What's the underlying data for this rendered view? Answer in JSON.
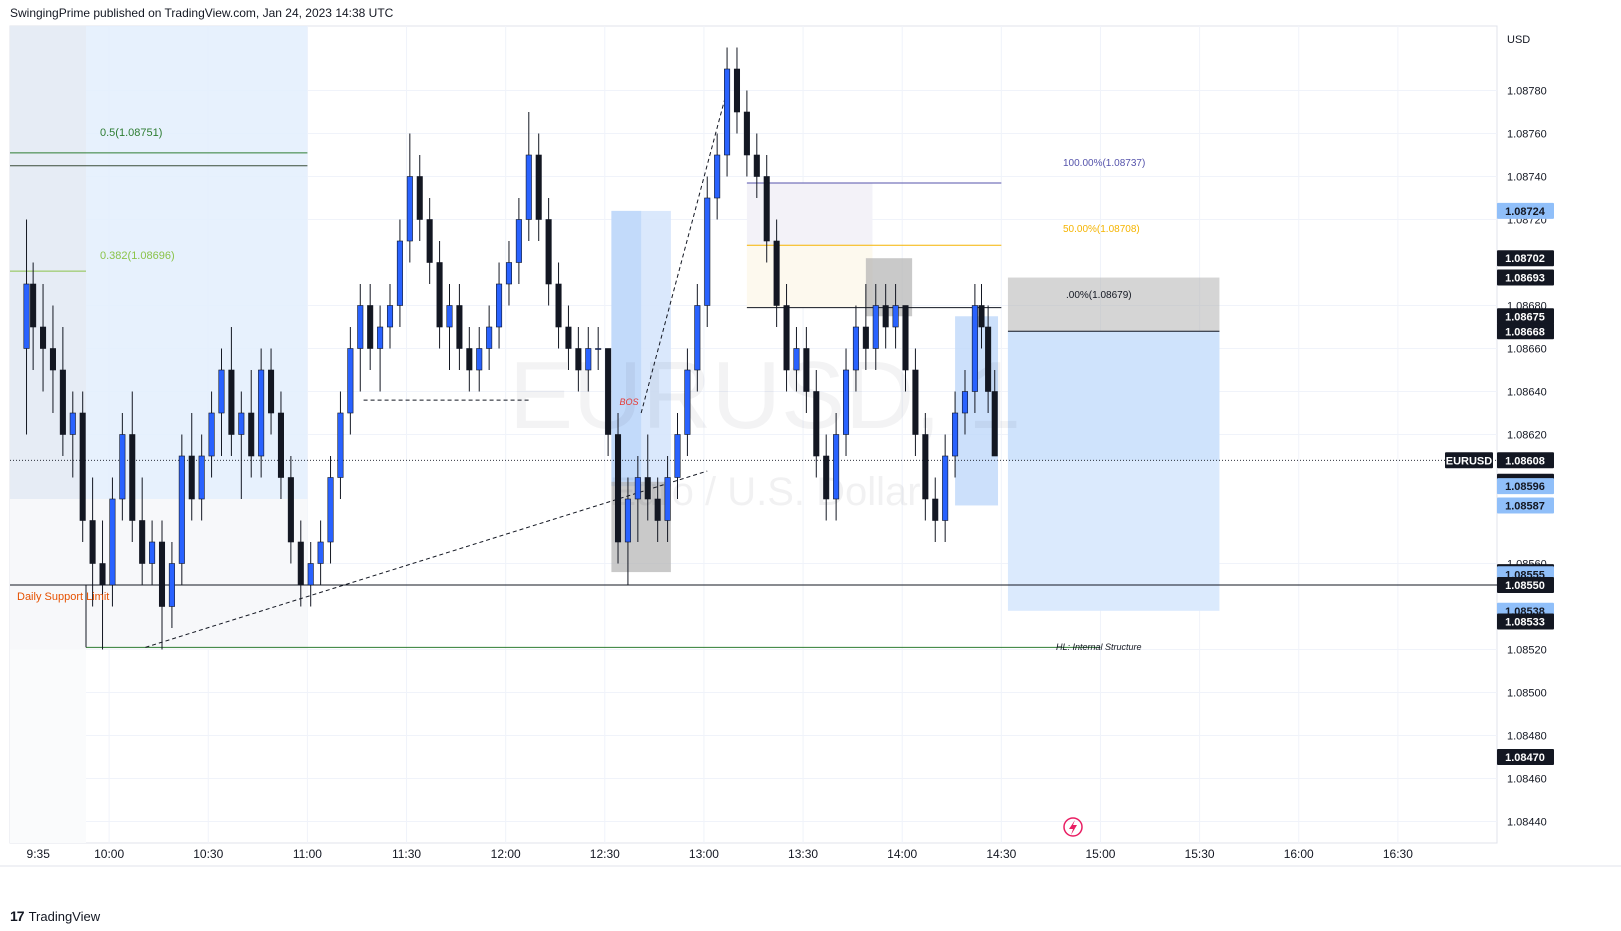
{
  "header": {
    "publisher_line": "SwingingPrime published on TradingView.com, Jan 24, 2023 14:38 UTC"
  },
  "footer": {
    "brand": "TradingView",
    "brand_icon": "tradingview-logo-icon"
  },
  "colors": {
    "candle_up": "#2962ff",
    "candle_down": "#131722",
    "blue_zone": "#e3eefd",
    "gray_box": "#b2b2b2",
    "fib_half": "#2e7d32",
    "fib_0382": "#8bc34a",
    "fib_100": "#5553ab",
    "fib_50": "#f5b400",
    "support_label": "#e65100",
    "bos_label": "#e53935",
    "hl_line": "#2e7d32",
    "price_tag_dark": "#131722",
    "price_tag_blue": "#90bff9"
  },
  "chart_data": {
    "type": "candlestick",
    "symbol": "EURUSD",
    "watermark": {
      "symbol": "EURUSD, 1",
      "name": "Euro / U.S. Dollar"
    },
    "currency": "USD",
    "ylim": [
      1.0843,
      1.0881
    ],
    "y_ticks": [
      1.0878,
      1.0876,
      1.0874,
      1.0872,
      1.0868,
      1.0866,
      1.0864,
      1.0862,
      1.0856,
      1.0852,
      1.085,
      1.0848,
      1.0846,
      1.0844
    ],
    "x_ticks": [
      "9:35",
      "10:00",
      "10:30",
      "11:00",
      "11:30",
      "12:00",
      "12:30",
      "13:00",
      "13:30",
      "14:00",
      "14:30",
      "15:00",
      "15:30",
      "16:00",
      "16:30"
    ],
    "x_range_minutes": [
      570,
      1020
    ],
    "candles": [
      {
        "t": 575,
        "o": 1.0866,
        "h": 1.0872,
        "l": 1.0862,
        "c": 1.0869
      },
      {
        "t": 577,
        "o": 1.0869,
        "h": 1.087,
        "l": 1.0865,
        "c": 1.0867
      },
      {
        "t": 580,
        "o": 1.0867,
        "h": 1.0869,
        "l": 1.0864,
        "c": 1.0866
      },
      {
        "t": 583,
        "o": 1.0866,
        "h": 1.0868,
        "l": 1.0863,
        "c": 1.0865
      },
      {
        "t": 586,
        "o": 1.0865,
        "h": 1.0867,
        "l": 1.0861,
        "c": 1.0862
      },
      {
        "t": 589,
        "o": 1.0862,
        "h": 1.0864,
        "l": 1.086,
        "c": 1.0863
      },
      {
        "t": 592,
        "o": 1.0863,
        "h": 1.0864,
        "l": 1.0857,
        "c": 1.0858
      },
      {
        "t": 595,
        "o": 1.0858,
        "h": 1.086,
        "l": 1.0854,
        "c": 1.0856
      },
      {
        "t": 598,
        "o": 1.0856,
        "h": 1.0858,
        "l": 1.0852,
        "c": 1.0855
      },
      {
        "t": 601,
        "o": 1.0855,
        "h": 1.086,
        "l": 1.0854,
        "c": 1.0859
      },
      {
        "t": 604,
        "o": 1.0859,
        "h": 1.0863,
        "l": 1.0858,
        "c": 1.0862
      },
      {
        "t": 607,
        "o": 1.0862,
        "h": 1.0864,
        "l": 1.0857,
        "c": 1.0858
      },
      {
        "t": 610,
        "o": 1.0858,
        "h": 1.086,
        "l": 1.0855,
        "c": 1.0856
      },
      {
        "t": 613,
        "o": 1.0856,
        "h": 1.0858,
        "l": 1.0855,
        "c": 1.0857
      },
      {
        "t": 616,
        "o": 1.0857,
        "h": 1.0858,
        "l": 1.0852,
        "c": 1.0854
      },
      {
        "t": 619,
        "o": 1.0854,
        "h": 1.0857,
        "l": 1.0853,
        "c": 1.0856
      },
      {
        "t": 622,
        "o": 1.0856,
        "h": 1.0862,
        "l": 1.0855,
        "c": 1.0861
      },
      {
        "t": 625,
        "o": 1.0861,
        "h": 1.0863,
        "l": 1.0858,
        "c": 1.0859
      },
      {
        "t": 628,
        "o": 1.0859,
        "h": 1.0862,
        "l": 1.0858,
        "c": 1.0861
      },
      {
        "t": 631,
        "o": 1.0861,
        "h": 1.0864,
        "l": 1.086,
        "c": 1.0863
      },
      {
        "t": 634,
        "o": 1.0863,
        "h": 1.0866,
        "l": 1.0861,
        "c": 1.0865
      },
      {
        "t": 637,
        "o": 1.0865,
        "h": 1.0867,
        "l": 1.0861,
        "c": 1.0862
      },
      {
        "t": 640,
        "o": 1.0862,
        "h": 1.0864,
        "l": 1.0859,
        "c": 1.0863
      },
      {
        "t": 643,
        "o": 1.0863,
        "h": 1.0865,
        "l": 1.086,
        "c": 1.0861
      },
      {
        "t": 646,
        "o": 1.0861,
        "h": 1.0866,
        "l": 1.086,
        "c": 1.0865
      },
      {
        "t": 649,
        "o": 1.0865,
        "h": 1.0866,
        "l": 1.0862,
        "c": 1.0863
      },
      {
        "t": 652,
        "o": 1.0863,
        "h": 1.0864,
        "l": 1.0859,
        "c": 1.086
      },
      {
        "t": 655,
        "o": 1.086,
        "h": 1.0861,
        "l": 1.0856,
        "c": 1.0857
      },
      {
        "t": 658,
        "o": 1.0857,
        "h": 1.0858,
        "l": 1.0854,
        "c": 1.0855
      },
      {
        "t": 661,
        "o": 1.0855,
        "h": 1.0857,
        "l": 1.0854,
        "c": 1.0856
      },
      {
        "t": 664,
        "o": 1.0856,
        "h": 1.0858,
        "l": 1.0855,
        "c": 1.0857
      },
      {
        "t": 667,
        "o": 1.0857,
        "h": 1.0861,
        "l": 1.0856,
        "c": 1.086
      },
      {
        "t": 670,
        "o": 1.086,
        "h": 1.0864,
        "l": 1.0859,
        "c": 1.0863
      },
      {
        "t": 673,
        "o": 1.0863,
        "h": 1.0867,
        "l": 1.0862,
        "c": 1.0866
      },
      {
        "t": 676,
        "o": 1.0866,
        "h": 1.0869,
        "l": 1.0864,
        "c": 1.0868
      },
      {
        "t": 679,
        "o": 1.0868,
        "h": 1.0869,
        "l": 1.0865,
        "c": 1.0866
      },
      {
        "t": 682,
        "o": 1.0866,
        "h": 1.0868,
        "l": 1.0864,
        "c": 1.0867
      },
      {
        "t": 685,
        "o": 1.0867,
        "h": 1.0869,
        "l": 1.0866,
        "c": 1.0868
      },
      {
        "t": 688,
        "o": 1.0868,
        "h": 1.0872,
        "l": 1.0867,
        "c": 1.0871
      },
      {
        "t": 691,
        "o": 1.0871,
        "h": 1.0876,
        "l": 1.087,
        "c": 1.0874
      },
      {
        "t": 694,
        "o": 1.0874,
        "h": 1.0875,
        "l": 1.0871,
        "c": 1.0872
      },
      {
        "t": 697,
        "o": 1.0872,
        "h": 1.0873,
        "l": 1.0869,
        "c": 1.087
      },
      {
        "t": 700,
        "o": 1.087,
        "h": 1.0871,
        "l": 1.0866,
        "c": 1.0867
      },
      {
        "t": 703,
        "o": 1.0867,
        "h": 1.0869,
        "l": 1.0865,
        "c": 1.0868
      },
      {
        "t": 706,
        "o": 1.0868,
        "h": 1.0869,
        "l": 1.0865,
        "c": 1.0866
      },
      {
        "t": 709,
        "o": 1.0866,
        "h": 1.0867,
        "l": 1.0864,
        "c": 1.0865
      },
      {
        "t": 712,
        "o": 1.0865,
        "h": 1.0867,
        "l": 1.0864,
        "c": 1.0866
      },
      {
        "t": 715,
        "o": 1.0866,
        "h": 1.0868,
        "l": 1.0865,
        "c": 1.0867
      },
      {
        "t": 718,
        "o": 1.0867,
        "h": 1.087,
        "l": 1.0866,
        "c": 1.0869
      },
      {
        "t": 721,
        "o": 1.0869,
        "h": 1.0871,
        "l": 1.0868,
        "c": 1.087
      },
      {
        "t": 724,
        "o": 1.087,
        "h": 1.0873,
        "l": 1.0869,
        "c": 1.0872
      },
      {
        "t": 727,
        "o": 1.0872,
        "h": 1.0877,
        "l": 1.0871,
        "c": 1.0875
      },
      {
        "t": 730,
        "o": 1.0875,
        "h": 1.0876,
        "l": 1.0871,
        "c": 1.0872
      },
      {
        "t": 733,
        "o": 1.0872,
        "h": 1.0873,
        "l": 1.0868,
        "c": 1.0869
      },
      {
        "t": 736,
        "o": 1.0869,
        "h": 1.087,
        "l": 1.0866,
        "c": 1.0867
      },
      {
        "t": 739,
        "o": 1.0867,
        "h": 1.0868,
        "l": 1.0865,
        "c": 1.0866
      },
      {
        "t": 742,
        "o": 1.0866,
        "h": 1.0867,
        "l": 1.0864,
        "c": 1.0865
      },
      {
        "t": 745,
        "o": 1.0865,
        "h": 1.0867,
        "l": 1.0864,
        "c": 1.0866
      },
      {
        "t": 748,
        "o": 1.0866,
        "h": 1.0867,
        "l": 1.0865,
        "c": 1.0866
      },
      {
        "t": 751,
        "o": 1.0866,
        "h": 1.0866,
        "l": 1.0861,
        "c": 1.0862
      },
      {
        "t": 754,
        "o": 1.0862,
        "h": 1.0863,
        "l": 1.0856,
        "c": 1.0857
      },
      {
        "t": 757,
        "o": 1.0857,
        "h": 1.086,
        "l": 1.0855,
        "c": 1.0859
      },
      {
        "t": 760,
        "o": 1.0859,
        "h": 1.0861,
        "l": 1.0857,
        "c": 1.086
      },
      {
        "t": 763,
        "o": 1.086,
        "h": 1.0862,
        "l": 1.0858,
        "c": 1.0859
      },
      {
        "t": 766,
        "o": 1.0859,
        "h": 1.086,
        "l": 1.0857,
        "c": 1.0858
      },
      {
        "t": 769,
        "o": 1.0858,
        "h": 1.0861,
        "l": 1.0857,
        "c": 1.086
      },
      {
        "t": 772,
        "o": 1.086,
        "h": 1.0863,
        "l": 1.0859,
        "c": 1.0862
      },
      {
        "t": 775,
        "o": 1.0862,
        "h": 1.0866,
        "l": 1.0861,
        "c": 1.0865
      },
      {
        "t": 778,
        "o": 1.0865,
        "h": 1.0869,
        "l": 1.0864,
        "c": 1.0868
      },
      {
        "t": 781,
        "o": 1.0868,
        "h": 1.0874,
        "l": 1.0867,
        "c": 1.0873
      },
      {
        "t": 784,
        "o": 1.0873,
        "h": 1.0876,
        "l": 1.0872,
        "c": 1.0875
      },
      {
        "t": 787,
        "o": 1.0875,
        "h": 1.088,
        "l": 1.0874,
        "c": 1.0879
      },
      {
        "t": 790,
        "o": 1.0879,
        "h": 1.088,
        "l": 1.0876,
        "c": 1.0877
      },
      {
        "t": 793,
        "o": 1.0877,
        "h": 1.0878,
        "l": 1.0874,
        "c": 1.0875
      },
      {
        "t": 796,
        "o": 1.0875,
        "h": 1.0876,
        "l": 1.0873,
        "c": 1.0874
      },
      {
        "t": 799,
        "o": 1.0874,
        "h": 1.0875,
        "l": 1.087,
        "c": 1.0871
      },
      {
        "t": 802,
        "o": 1.0871,
        "h": 1.0872,
        "l": 1.0867,
        "c": 1.0868
      },
      {
        "t": 805,
        "o": 1.0868,
        "h": 1.0869,
        "l": 1.0864,
        "c": 1.0865
      },
      {
        "t": 808,
        "o": 1.0865,
        "h": 1.0867,
        "l": 1.0864,
        "c": 1.0866
      },
      {
        "t": 811,
        "o": 1.0866,
        "h": 1.0867,
        "l": 1.0863,
        "c": 1.0864
      },
      {
        "t": 814,
        "o": 1.0864,
        "h": 1.0865,
        "l": 1.086,
        "c": 1.0861
      },
      {
        "t": 817,
        "o": 1.0861,
        "h": 1.0862,
        "l": 1.0858,
        "c": 1.0859
      },
      {
        "t": 820,
        "o": 1.0859,
        "h": 1.0863,
        "l": 1.0858,
        "c": 1.0862
      },
      {
        "t": 823,
        "o": 1.0862,
        "h": 1.0866,
        "l": 1.0861,
        "c": 1.0865
      },
      {
        "t": 826,
        "o": 1.0865,
        "h": 1.0868,
        "l": 1.0864,
        "c": 1.0867
      },
      {
        "t": 829,
        "o": 1.0867,
        "h": 1.0869,
        "l": 1.0865,
        "c": 1.0866
      },
      {
        "t": 832,
        "o": 1.0866,
        "h": 1.0869,
        "l": 1.0865,
        "c": 1.0868
      },
      {
        "t": 835,
        "o": 1.0868,
        "h": 1.0869,
        "l": 1.0866,
        "c": 1.0867
      },
      {
        "t": 838,
        "o": 1.0867,
        "h": 1.0869,
        "l": 1.0866,
        "c": 1.0868
      },
      {
        "t": 841,
        "o": 1.0868,
        "h": 1.0868,
        "l": 1.0864,
        "c": 1.0865
      },
      {
        "t": 844,
        "o": 1.0865,
        "h": 1.0866,
        "l": 1.0861,
        "c": 1.0862
      },
      {
        "t": 847,
        "o": 1.0862,
        "h": 1.0863,
        "l": 1.0858,
        "c": 1.0859
      },
      {
        "t": 850,
        "o": 1.0859,
        "h": 1.086,
        "l": 1.0857,
        "c": 1.0858
      },
      {
        "t": 853,
        "o": 1.0858,
        "h": 1.0862,
        "l": 1.0857,
        "c": 1.0861
      },
      {
        "t": 856,
        "o": 1.0861,
        "h": 1.0864,
        "l": 1.086,
        "c": 1.0863
      },
      {
        "t": 859,
        "o": 1.0863,
        "h": 1.0865,
        "l": 1.0862,
        "c": 1.0864
      },
      {
        "t": 862,
        "o": 1.0864,
        "h": 1.0869,
        "l": 1.0863,
        "c": 1.0868
      },
      {
        "t": 864,
        "o": 1.0868,
        "h": 1.0869,
        "l": 1.0866,
        "c": 1.0867
      },
      {
        "t": 866,
        "o": 1.0867,
        "h": 1.0868,
        "l": 1.0863,
        "c": 1.0864
      },
      {
        "t": 868,
        "o": 1.0864,
        "h": 1.0865,
        "l": 1.0861,
        "c": 1.0861
      }
    ],
    "price_labels": [
      {
        "label": "1.08724",
        "value": 1.08724,
        "style": "blue"
      },
      {
        "label": "1.08702",
        "value": 1.08702,
        "style": "dark"
      },
      {
        "label": "1.08693",
        "value": 1.08693,
        "style": "dark"
      },
      {
        "label": "1.08675",
        "value": 1.08675,
        "style": "dark"
      },
      {
        "label": "1.08668",
        "value": 1.08668,
        "style": "dark"
      },
      {
        "label": "1.08608",
        "value": 1.08608,
        "style": "dark"
      },
      {
        "label": "1.08598",
        "value": 1.08598,
        "style": "dark"
      },
      {
        "label": "1.08596",
        "value": 1.08596,
        "style": "blue"
      },
      {
        "label": "1.08587",
        "value": 1.08587,
        "style": "blue"
      },
      {
        "label": "1.08556",
        "value": 1.08556,
        "style": "dark"
      },
      {
        "label": "1.08555",
        "value": 1.08555,
        "style": "blue"
      },
      {
        "label": "1.08550",
        "value": 1.0855,
        "style": "dark"
      },
      {
        "label": "1.08538",
        "value": 1.08538,
        "style": "blue"
      },
      {
        "label": "1.08533",
        "value": 1.08533,
        "style": "dark"
      },
      {
        "label": "1.08470",
        "value": 1.0847,
        "style": "dark"
      }
    ],
    "current_price": {
      "symbol": "EURUSD",
      "value": 1.08608
    },
    "annotations": {
      "fib_0_5": "0.5(1.08751)",
      "fib_0_382": "0.382(1.08696)",
      "fib_100": "100.00%(1.08737)",
      "fib_50": "50.00%(1.08708)",
      "fib_0": ".00%(1.08679)",
      "daily_support": "Daily Support Limit",
      "bos": "BOS",
      "hl": "HL: Internal Structure"
    }
  }
}
